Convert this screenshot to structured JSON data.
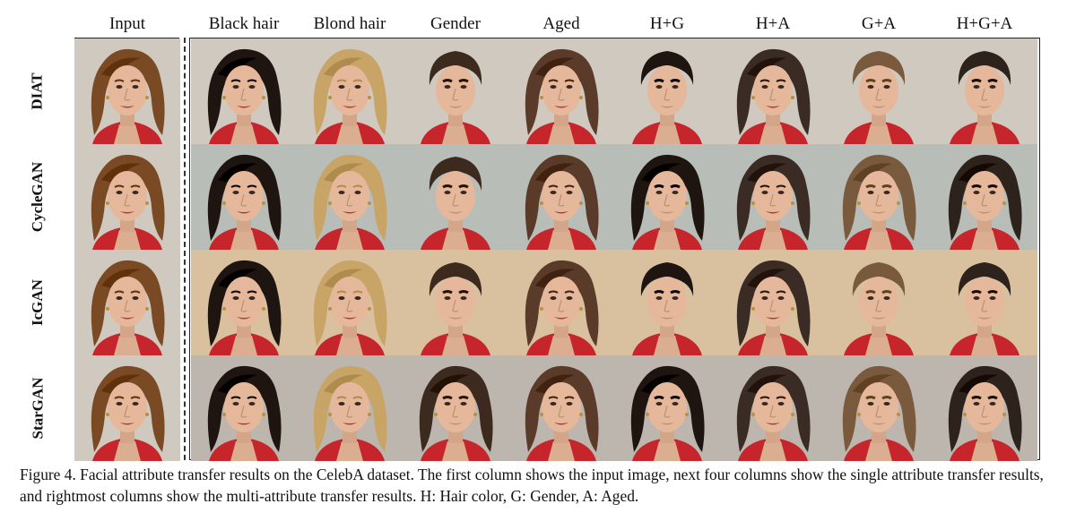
{
  "columns": [
    "Input",
    "Black hair",
    "Blond hair",
    "Gender",
    "Aged",
    "H+G",
    "H+A",
    "G+A",
    "H+G+A"
  ],
  "rows": [
    "DIAT",
    "CycleGAN",
    "IcGAN",
    "StarGAN"
  ],
  "caption": "Figure 4. Facial attribute transfer results on the CelebA dataset. The first column shows the input image, next four columns show the single attribute transfer results, and rightmost columns show the multi-attribute transfer results. H: Hair color, G: Gender, A: Aged.",
  "colors": {
    "row_backgrounds": [
      "#cfc9c0",
      "#b9bdb8",
      "#d9c1a0",
      "#bdb6ae"
    ],
    "hair": {
      "input": "#7a4a24",
      "black": "#1e1511",
      "blond": "#c9a467",
      "gender": "#3d2a1e",
      "aged": "#5a3a28",
      "hg": "#1e1511",
      "ha": "#3a2c24",
      "ga": "#7a5a3c",
      "hga": "#2d231c"
    },
    "skin": "#e6b89b",
    "lips": "#b8343a",
    "shirt": "#c6262b"
  }
}
